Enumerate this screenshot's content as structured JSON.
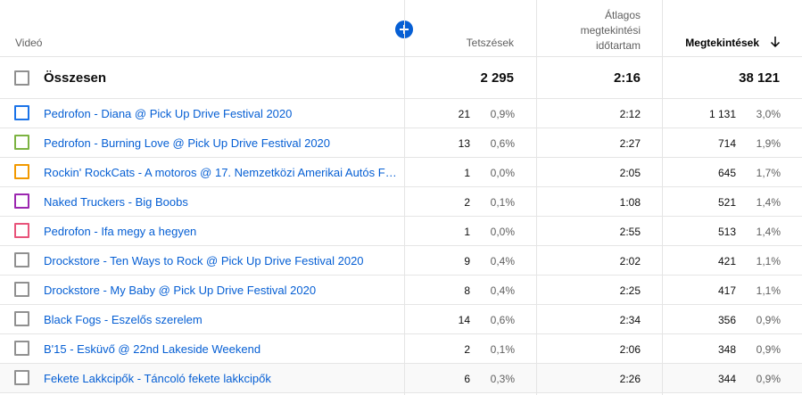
{
  "header": {
    "video": "Videó",
    "likes": "Tetszések",
    "avg_line1": "Átlagos",
    "avg_line2": "megtekintési",
    "avg_line3": "időtartam",
    "views": "Megtekintések",
    "add_icon": "plus-circle-icon",
    "sort_icon": "arrow-down-icon"
  },
  "total": {
    "label": "Összesen",
    "likes": "2 295",
    "avg": "2:16",
    "views": "38 121"
  },
  "colors": {
    "accent": "#065fd4",
    "link": "#065fd4",
    "border": "#e5e5e5",
    "secondary_text": "#606060"
  },
  "rows": [
    {
      "title": "Pedrofon - Diana @ Pick Up Drive Festival 2020",
      "likes": "21",
      "likes_pct": "0,9%",
      "avg": "2:12",
      "views": "1 131",
      "views_pct": "3,0%",
      "checkbox_color": "#1a73e8"
    },
    {
      "title": "Pedrofon - Burning Love @ Pick Up Drive Festival 2020",
      "likes": "13",
      "likes_pct": "0,6%",
      "avg": "2:27",
      "views": "714",
      "views_pct": "1,9%",
      "checkbox_color": "#7cb342"
    },
    {
      "title": "Rockin' RockCats - A motoros @ 17. Nemzetközi Amerikai Autós Fe...",
      "likes": "1",
      "likes_pct": "0,0%",
      "avg": "2:05",
      "views": "645",
      "views_pct": "1,7%",
      "checkbox_color": "#f29900"
    },
    {
      "title": "Naked Truckers - Big Boobs",
      "likes": "2",
      "likes_pct": "0,1%",
      "avg": "1:08",
      "views": "521",
      "views_pct": "1,4%",
      "checkbox_color": "#9c27b0"
    },
    {
      "title": "Pedrofon - Ifa megy a hegyen",
      "likes": "1",
      "likes_pct": "0,0%",
      "avg": "2:55",
      "views": "513",
      "views_pct": "1,4%",
      "checkbox_color": "#e8537a"
    },
    {
      "title": "Drockstore - Ten Ways to Rock @ Pick Up Drive Festival 2020",
      "likes": "9",
      "likes_pct": "0,4%",
      "avg": "2:02",
      "views": "421",
      "views_pct": "1,1%",
      "checkbox_color": "#909090"
    },
    {
      "title": "Drockstore - My Baby @ Pick Up Drive Festival 2020",
      "likes": "8",
      "likes_pct": "0,4%",
      "avg": "2:25",
      "views": "417",
      "views_pct": "1,1%",
      "checkbox_color": "#909090"
    },
    {
      "title": "Black Fogs - Eszelős szerelem",
      "likes": "14",
      "likes_pct": "0,6%",
      "avg": "2:34",
      "views": "356",
      "views_pct": "0,9%",
      "checkbox_color": "#909090"
    },
    {
      "title": "B'15 - Esküvő @ 22nd Lakeside Weekend",
      "likes": "2",
      "likes_pct": "0,1%",
      "avg": "2:06",
      "views": "348",
      "views_pct": "0,9%",
      "checkbox_color": "#909090"
    },
    {
      "title": "Fekete Lakkcipők - Táncoló fekete lakkcipők",
      "likes": "6",
      "likes_pct": "0,3%",
      "avg": "2:26",
      "views": "344",
      "views_pct": "0,9%",
      "checkbox_color": "#909090"
    }
  ]
}
